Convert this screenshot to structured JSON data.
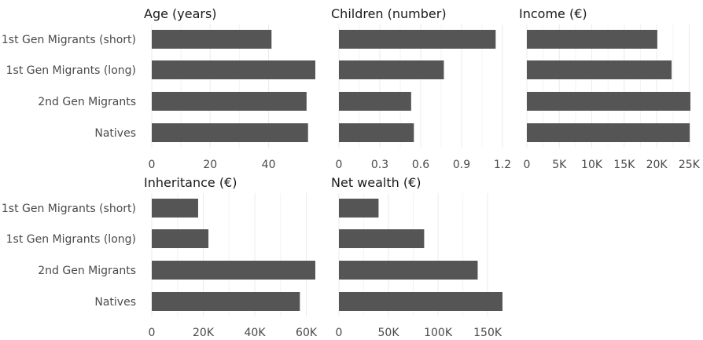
{
  "colors": {
    "bar": "#555555",
    "grid": "#ebebeb",
    "text": "#4a4a4a"
  },
  "chart_data": [
    {
      "type": "bar",
      "orientation": "horizontal",
      "title": "Age (years)",
      "categories": [
        "1st Gen Migrants (short)",
        "1st Gen Migrants (long)",
        "2nd Gen Migrants",
        "Natives"
      ],
      "values": [
        41,
        56,
        53,
        53.5
      ],
      "xlim": [
        0,
        56
      ],
      "ticks": [
        0,
        20,
        40
      ],
      "tick_labels": [
        "0",
        "20",
        "40"
      ]
    },
    {
      "type": "bar",
      "orientation": "horizontal",
      "title": "Children (number)",
      "categories": [
        "1st Gen Migrants (short)",
        "1st Gen Migrants (long)",
        "2nd Gen Migrants",
        "Natives"
      ],
      "values": [
        1.15,
        0.77,
        0.53,
        0.55
      ],
      "xlim": [
        0,
        1.2
      ],
      "ticks": [
        0,
        0.3,
        0.6,
        0.9,
        1.2
      ],
      "tick_labels": [
        "0",
        "0.3",
        "0.6",
        "0.9",
        "1.2"
      ]
    },
    {
      "type": "bar",
      "orientation": "horizontal",
      "title": "Income (€)",
      "categories": [
        "1st Gen Migrants (short)",
        "1st Gen Migrants (long)",
        "2nd Gen Migrants",
        "Natives"
      ],
      "values": [
        20100,
        22300,
        25200,
        25100
      ],
      "xlim": [
        0,
        25200
      ],
      "ticks": [
        0,
        5000,
        10000,
        15000,
        20000,
        25000
      ],
      "tick_labels": [
        "0",
        "5K",
        "10K",
        "15K",
        "20K",
        "25K"
      ]
    },
    {
      "type": "bar",
      "orientation": "horizontal",
      "title": "Inheritance (€)",
      "categories": [
        "1st Gen Migrants (short)",
        "1st Gen Migrants (long)",
        "2nd Gen Migrants",
        "Natives"
      ],
      "values": [
        18000,
        22000,
        63500,
        57500
      ],
      "xlim": [
        0,
        63500
      ],
      "ticks": [
        0,
        20000,
        40000,
        60000
      ],
      "tick_labels": [
        "0",
        "20K",
        "40K",
        "60K"
      ]
    },
    {
      "type": "bar",
      "orientation": "horizontal",
      "title": "Net wealth (€)",
      "categories": [
        "1st Gen Migrants (short)",
        "1st Gen Migrants (long)",
        "2nd Gen Migrants",
        "Natives"
      ],
      "values": [
        40000,
        86000,
        140000,
        165000
      ],
      "xlim": [
        0,
        165000
      ],
      "ticks": [
        0,
        50000,
        100000,
        150000
      ],
      "tick_labels": [
        "0",
        "50K",
        "100K",
        "150K"
      ]
    }
  ]
}
